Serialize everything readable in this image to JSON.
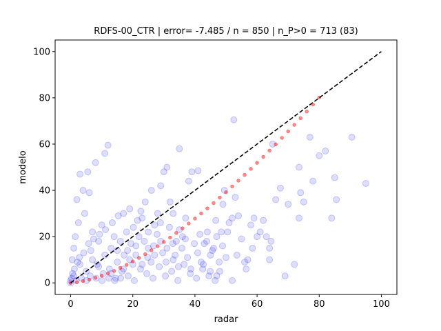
{
  "chart_data": {
    "type": "scatter",
    "title": "RDFS-00_CTR | error= -7.485 / n = 850 | n_P>0 = 713 (83)",
    "xlabel": "radar",
    "ylabel": "modelo",
    "xlim": [
      -5,
      105
    ],
    "ylim": [
      -5,
      105
    ],
    "xticks": [
      0,
      20,
      40,
      60,
      80,
      100
    ],
    "yticks": [
      0,
      20,
      40,
      60,
      80,
      100
    ],
    "grid": false,
    "colors": {
      "scatter": "#0000ff",
      "fit": "#ff0000",
      "reference": "#000000"
    },
    "series": [
      {
        "style": "scatter-points",
        "points": [
          [
            95,
            43
          ],
          [
            90.5,
            63
          ],
          [
            85,
            45.5
          ],
          [
            85.5,
            36
          ],
          [
            84,
            28
          ],
          [
            82,
            57
          ],
          [
            77,
            63
          ],
          [
            73.5,
            50
          ],
          [
            74,
            39
          ],
          [
            73.5,
            28
          ],
          [
            75,
            35
          ],
          [
            72,
            8
          ],
          [
            67.5,
            41
          ],
          [
            69,
            3
          ],
          [
            65,
            60
          ],
          [
            64.5,
            18
          ],
          [
            64,
            15
          ],
          [
            64,
            10
          ],
          [
            62,
            27
          ],
          [
            60,
            20
          ],
          [
            59,
            28
          ],
          [
            58,
            25
          ],
          [
            57,
            10
          ],
          [
            56,
            9
          ],
          [
            54,
            29
          ],
          [
            55,
            19
          ],
          [
            53,
            37
          ],
          [
            52.5,
            70.5
          ],
          [
            52,
            28
          ],
          [
            51,
            26
          ],
          [
            52,
            1
          ],
          [
            50,
            11
          ],
          [
            49.5,
            40
          ],
          [
            49,
            34
          ],
          [
            48.5,
            22
          ],
          [
            47,
            20
          ],
          [
            46,
            15
          ],
          [
            45,
            12
          ],
          [
            48,
            5
          ],
          [
            47,
            3
          ],
          [
            44,
            22
          ],
          [
            43,
            17
          ],
          [
            42,
            9
          ],
          [
            41,
            48.5
          ],
          [
            39,
            48
          ],
          [
            38,
            44
          ],
          [
            37,
            28
          ],
          [
            36,
            20
          ],
          [
            35,
            58
          ],
          [
            34,
            18
          ],
          [
            33,
            10
          ],
          [
            32,
            35
          ],
          [
            31,
            50
          ],
          [
            30,
            48
          ],
          [
            29,
            42
          ],
          [
            28,
            30
          ],
          [
            27,
            25
          ],
          [
            26,
            40
          ],
          [
            25,
            15
          ],
          [
            24,
            35
          ],
          [
            23,
            28
          ],
          [
            22,
            20
          ],
          [
            21,
            12
          ],
          [
            20,
            8
          ],
          [
            19,
            32
          ],
          [
            18,
            22
          ],
          [
            17,
            30
          ],
          [
            16,
            18
          ],
          [
            15,
            14
          ],
          [
            14,
            20
          ],
          [
            13,
            15
          ],
          [
            12,
            59.5
          ],
          [
            11,
            56
          ],
          [
            10,
            25
          ],
          [
            9,
            18
          ],
          [
            8,
            52
          ],
          [
            7,
            22
          ],
          [
            6,
            39
          ],
          [
            5.5,
            48
          ],
          [
            4,
            40
          ],
          [
            3,
            47
          ],
          [
            2,
            36
          ],
          [
            1.5,
            20
          ],
          [
            1,
            15
          ],
          [
            0.5,
            10
          ],
          [
            2.5,
            26
          ],
          [
            4.5,
            30
          ],
          [
            6.5,
            14
          ],
          [
            8.5,
            8
          ],
          [
            10.5,
            4
          ],
          [
            12.5,
            6
          ],
          [
            14.5,
            2
          ],
          [
            16.5,
            5
          ],
          [
            18.5,
            3
          ],
          [
            20.5,
            1
          ],
          [
            22.5,
            6
          ],
          [
            24.5,
            4
          ],
          [
            26.5,
            2
          ],
          [
            28.5,
            7
          ],
          [
            30.5,
            3
          ],
          [
            32.5,
            5
          ],
          [
            34.5,
            1
          ],
          [
            36.5,
            8
          ],
          [
            38.5,
            4
          ],
          [
            40.5,
            2
          ],
          [
            42.5,
            6
          ],
          [
            44.5,
            3
          ],
          [
            46.5,
            1
          ],
          [
            35,
            23
          ],
          [
            33,
            30
          ],
          [
            31,
            15
          ],
          [
            29,
            18
          ],
          [
            27,
            12
          ],
          [
            25,
            22
          ],
          [
            23,
            8
          ],
          [
            21,
            16
          ],
          [
            19,
            10
          ],
          [
            17,
            6
          ],
          [
            15,
            9
          ],
          [
            13,
            4
          ],
          [
            11,
            12
          ],
          [
            9,
            7
          ],
          [
            7,
            10
          ],
          [
            5,
            5
          ],
          [
            3,
            8
          ],
          [
            1,
            3
          ],
          [
            0,
            1
          ],
          [
            0,
            0
          ],
          [
            0.3,
            2
          ],
          [
            0.6,
            4
          ],
          [
            1.2,
            6
          ],
          [
            1.8,
            1
          ],
          [
            2.2,
            9
          ],
          [
            2.8,
            11
          ],
          [
            3.5,
            2
          ],
          [
            4.2,
            13
          ],
          [
            5.1,
            1
          ],
          [
            5.8,
            17
          ],
          [
            6.3,
            3
          ],
          [
            7.4,
            19
          ],
          [
            8.2,
            2
          ],
          [
            9.3,
            21
          ],
          [
            10.1,
            1
          ],
          [
            11.2,
            23
          ],
          [
            12.3,
            2
          ],
          [
            13.4,
            26
          ],
          [
            14.2,
            1
          ],
          [
            15.3,
            29
          ],
          [
            16.1,
            2
          ],
          [
            17.2,
            12
          ],
          [
            18.3,
            14
          ],
          [
            19.4,
            17
          ],
          [
            20.2,
            24
          ],
          [
            21.5,
            27
          ],
          [
            22.6,
            31
          ],
          [
            23.7,
            18
          ],
          [
            24.8,
            11
          ],
          [
            25.9,
            9
          ],
          [
            26.7,
            16
          ],
          [
            27.8,
            21
          ],
          [
            28.9,
            26
          ],
          [
            29.6,
            13
          ],
          [
            30.7,
            9
          ],
          [
            31.8,
            24
          ],
          [
            32.9,
            17
          ],
          [
            33.6,
            12
          ],
          [
            34.7,
            7
          ],
          [
            35.8,
            15
          ],
          [
            36.9,
            19
          ],
          [
            37.6,
            11
          ],
          [
            38.7,
            6
          ],
          [
            39.8,
            17
          ],
          [
            40.9,
            13
          ],
          [
            41.6,
            21
          ],
          [
            42.7,
            8
          ],
          [
            43.8,
            18
          ],
          [
            44.9,
            5
          ],
          [
            45.6,
            14
          ],
          [
            46.7,
            27
          ],
          [
            47.8,
            9
          ],
          [
            48.9,
            16
          ],
          [
            50.5,
            22
          ],
          [
            53.5,
            12
          ],
          [
            56.5,
            6
          ],
          [
            58.5,
            15
          ],
          [
            61,
            22
          ],
          [
            63,
            20
          ],
          [
            66,
            36
          ],
          [
            70,
            34
          ],
          [
            78,
            44
          ],
          [
            80,
            55
          ]
        ]
      },
      {
        "style": "fit-curve",
        "points": [
          [
            0,
            0
          ],
          [
            2,
            0.3
          ],
          [
            4,
            0.8
          ],
          [
            6,
            1.4
          ],
          [
            8,
            2.2
          ],
          [
            10,
            3.1
          ],
          [
            12,
            4.1
          ],
          [
            14,
            5.2
          ],
          [
            16,
            6.5
          ],
          [
            18,
            7.8
          ],
          [
            20,
            9.3
          ],
          [
            22,
            10.8
          ],
          [
            24,
            12.4
          ],
          [
            26,
            14.1
          ],
          [
            28,
            15.9
          ],
          [
            30,
            17.7
          ],
          [
            32,
            19.6
          ],
          [
            34,
            21.6
          ],
          [
            36,
            23.6
          ],
          [
            38,
            25.7
          ],
          [
            40,
            27.8
          ],
          [
            42,
            30
          ],
          [
            44,
            32.2
          ],
          [
            46,
            34.5
          ],
          [
            48,
            36.9
          ],
          [
            50,
            39.2
          ],
          [
            52,
            41.7
          ],
          [
            54,
            44.2
          ],
          [
            56,
            46.7
          ],
          [
            58,
            49.3
          ],
          [
            60,
            51.9
          ],
          [
            62,
            54.5
          ],
          [
            64,
            57.2
          ],
          [
            66,
            59.9
          ],
          [
            68,
            62.7
          ],
          [
            70,
            65.5
          ],
          [
            72,
            68.3
          ],
          [
            74,
            71.2
          ],
          [
            76,
            74.1
          ],
          [
            78,
            77.1
          ],
          [
            80,
            80.1
          ]
        ]
      },
      {
        "style": "reference-line",
        "points": [
          [
            0,
            0
          ],
          [
            100,
            100
          ]
        ]
      }
    ]
  }
}
